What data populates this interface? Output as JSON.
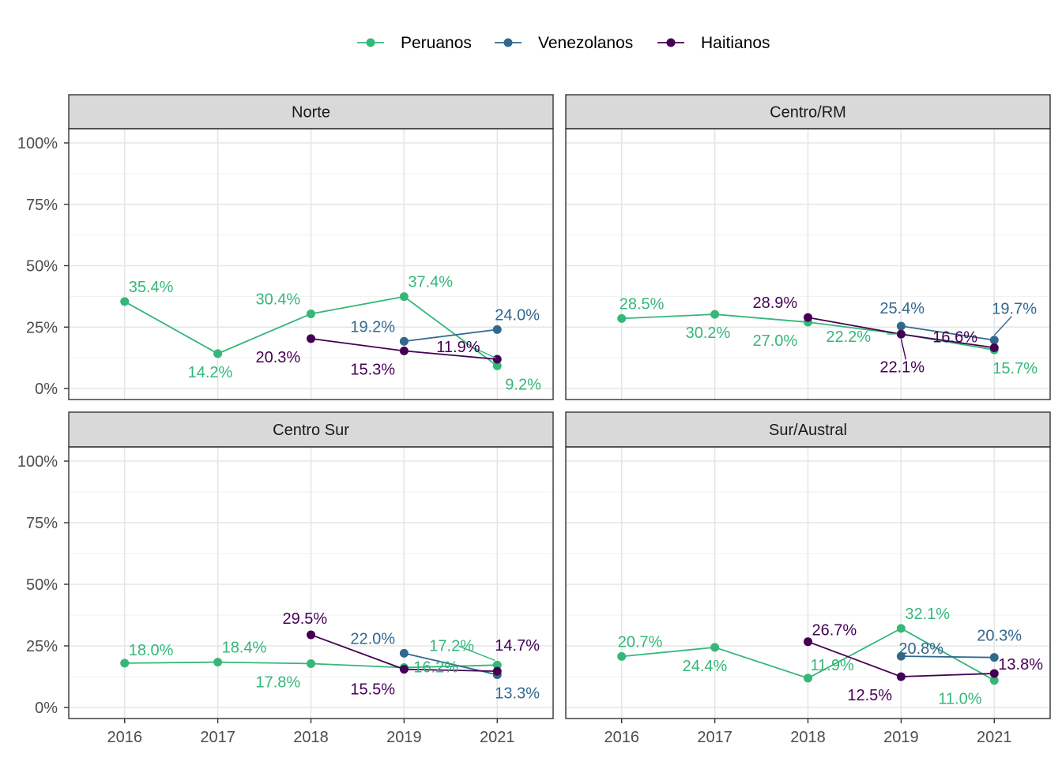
{
  "chart_data": {
    "type": "line",
    "y_axis": {
      "range": [
        0,
        100
      ],
      "ticks": [
        0,
        25,
        50,
        75,
        100
      ],
      "tick_labels": [
        "0%",
        "25%",
        "50%",
        "75%",
        "100%"
      ]
    },
    "x_categories": [
      "2016",
      "2017",
      "2018",
      "2019",
      "2021"
    ],
    "legend": {
      "placement": "top",
      "entries": [
        {
          "name": "Peruanos",
          "color": "#35b779"
        },
        {
          "name": "Venezolanos",
          "color": "#31688e"
        },
        {
          "name": "Haitianos",
          "color": "#440154"
        }
      ]
    },
    "grid": true,
    "panels": [
      {
        "title": "Norte",
        "series": [
          {
            "name": "Peruanos",
            "x": [
              "2016",
              "2017",
              "2018",
              "2019",
              "2021"
            ],
            "values": [
              35.4,
              14.2,
              30.4,
              37.4,
              9.2
            ],
            "labels": [
              "35.4%",
              "14.2%",
              "30.4%",
              "37.4%",
              "9.2%"
            ]
          },
          {
            "name": "Venezolanos",
            "x": [
              "2019",
              "2021"
            ],
            "values": [
              19.2,
              24.0
            ],
            "labels": [
              "19.2%",
              "24.0%"
            ]
          },
          {
            "name": "Haitianos",
            "x": [
              "2018",
              "2019",
              "2021"
            ],
            "values": [
              20.3,
              15.3,
              11.9
            ],
            "labels": [
              "20.3%",
              "15.3%",
              "11.9%"
            ]
          }
        ]
      },
      {
        "title": "Centro/RM",
        "series": [
          {
            "name": "Peruanos",
            "x": [
              "2016",
              "2017",
              "2018",
              "2019",
              "2021"
            ],
            "values": [
              28.5,
              30.2,
              27.0,
              22.2,
              15.7
            ],
            "labels": [
              "28.5%",
              "30.2%",
              "27.0%",
              "22.2%",
              "15.7%"
            ]
          },
          {
            "name": "Venezolanos",
            "x": [
              "2019",
              "2021"
            ],
            "values": [
              25.4,
              19.7
            ],
            "labels": [
              "25.4%",
              "19.7%"
            ]
          },
          {
            "name": "Haitianos",
            "x": [
              "2018",
              "2019",
              "2021"
            ],
            "values": [
              28.9,
              22.1,
              16.6
            ],
            "labels": [
              "28.9%",
              "22.1%",
              "16.6%"
            ]
          }
        ]
      },
      {
        "title": "Centro Sur",
        "series": [
          {
            "name": "Peruanos",
            "x": [
              "2016",
              "2017",
              "2018",
              "2019",
              "2021"
            ],
            "values": [
              18.0,
              18.4,
              17.8,
              16.2,
              17.2
            ],
            "labels": [
              "18.0%",
              "18.4%",
              "17.8%",
              "16.2%",
              "17.2%"
            ]
          },
          {
            "name": "Venezolanos",
            "x": [
              "2019",
              "2021"
            ],
            "values": [
              22.0,
              13.3
            ],
            "labels": [
              "22.0%",
              "13.3%"
            ]
          },
          {
            "name": "Haitianos",
            "x": [
              "2018",
              "2019",
              "2021"
            ],
            "values": [
              29.5,
              15.5,
              14.7
            ],
            "labels": [
              "29.5%",
              "15.5%",
              "14.7%"
            ]
          }
        ]
      },
      {
        "title": "Sur/Austral",
        "series": [
          {
            "name": "Peruanos",
            "x": [
              "2016",
              "2017",
              "2018",
              "2019",
              "2021"
            ],
            "values": [
              20.7,
              24.4,
              11.9,
              32.1,
              11.0
            ],
            "labels": [
              "20.7%",
              "24.4%",
              "11.9%",
              "32.1%",
              "11.0%"
            ]
          },
          {
            "name": "Venezolanos",
            "x": [
              "2019",
              "2021"
            ],
            "values": [
              20.8,
              20.3
            ],
            "labels": [
              "20.8%",
              "20.3%"
            ]
          },
          {
            "name": "Haitianos",
            "x": [
              "2018",
              "2019",
              "2021"
            ],
            "values": [
              26.7,
              12.5,
              13.8
            ],
            "labels": [
              "26.7%",
              "12.5%",
              "13.8%"
            ]
          }
        ]
      }
    ]
  }
}
